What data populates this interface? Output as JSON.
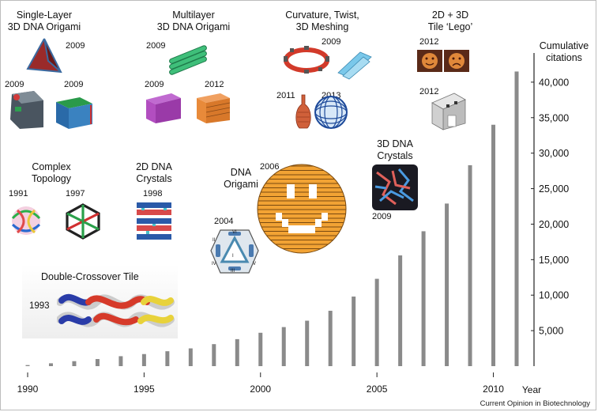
{
  "chart_data": {
    "type": "bar",
    "categories": [
      1990,
      1991,
      1992,
      1993,
      1994,
      1995,
      1996,
      1997,
      1998,
      1999,
      2000,
      2001,
      2002,
      2003,
      2004,
      2005,
      2006,
      2007,
      2008,
      2009,
      2010,
      2011
    ],
    "values": [
      150,
      400,
      700,
      1000,
      1400,
      1700,
      2100,
      2500,
      3100,
      3800,
      4700,
      5500,
      6400,
      7800,
      9800,
      12300,
      15600,
      19000,
      22900,
      28300,
      34000,
      41500
    ],
    "series": [
      {
        "values": [
          150,
          400,
          700,
          1000,
          1400,
          1700,
          2100,
          2500,
          3100,
          3800,
          4700,
          5500,
          6400,
          7800,
          9800,
          12300,
          15600,
          19000,
          22900,
          28300,
          34000,
          41500
        ]
      }
    ],
    "ylabel": "Cumulative citations",
    "xlabel": "Year",
    "ylim": [
      0,
      45000
    ],
    "xlim": [
      1990,
      2011
    ],
    "yticks": [
      5000,
      10000,
      15000,
      20000,
      25000,
      30000,
      35000,
      40000
    ],
    "ytick_labels": [
      "5,000",
      "10,000",
      "15,000",
      "20,000",
      "25,000",
      "30,000",
      "35,000",
      "40,000"
    ],
    "xticks": [
      1990,
      1995,
      2000,
      2005,
      2010
    ],
    "xtick_labels": [
      "1990",
      "1995",
      "2000",
      "2005",
      "2010"
    ],
    "grid": false,
    "bar_color": "#8a8a8a"
  },
  "axis": {
    "ylabel_line1": "Cumulative",
    "ylabel_line2": "citations",
    "xlabel": "Year"
  },
  "annotations": {
    "single_layer": {
      "title1": "Single-Layer",
      "title2": "3D DNA Origami",
      "years": [
        "2009",
        "2009",
        "2009"
      ]
    },
    "multilayer": {
      "title1": "Multilayer",
      "title2": "3D DNA Origami",
      "years": [
        "2009",
        "2009",
        "2012"
      ]
    },
    "curvature": {
      "title1": "Curvature, Twist,",
      "title2": "3D Meshing",
      "years": [
        "2009",
        "2011",
        "2013"
      ]
    },
    "tile_lego": {
      "title1": "2D + 3D",
      "title2": "Tile ‘Lego’",
      "years": [
        "2012",
        "2012"
      ]
    },
    "complex_topology": {
      "title1": "Complex",
      "title2": "Topology",
      "years": [
        "1991",
        "1997"
      ]
    },
    "dna_crystals_2d": {
      "title1": "2D DNA",
      "title2": "Crystals",
      "years": [
        "1998"
      ]
    },
    "dna_origami": {
      "title1": "DNA",
      "title2": "Origami",
      "years": [
        "2006",
        "2004"
      ],
      "octahedron_faces": [
        "I",
        "II",
        "III",
        "IV",
        "V",
        "VI"
      ]
    },
    "dna_crystals_3d": {
      "title1": "3D DNA",
      "title2": "Crystals",
      "years": [
        "2009"
      ]
    },
    "double_crossover": {
      "title": "Double-Crossover Tile",
      "year": "1993"
    }
  },
  "credit": "Current Opinion in Biotechnology",
  "colors": {
    "bars": "#8a8a8a",
    "smiley": "#f0a030",
    "origami_outline": "#7a4a10",
    "dx_blue": "#2a3ca8",
    "dx_red": "#d63a2a",
    "dx_yellow": "#e8d23a"
  }
}
